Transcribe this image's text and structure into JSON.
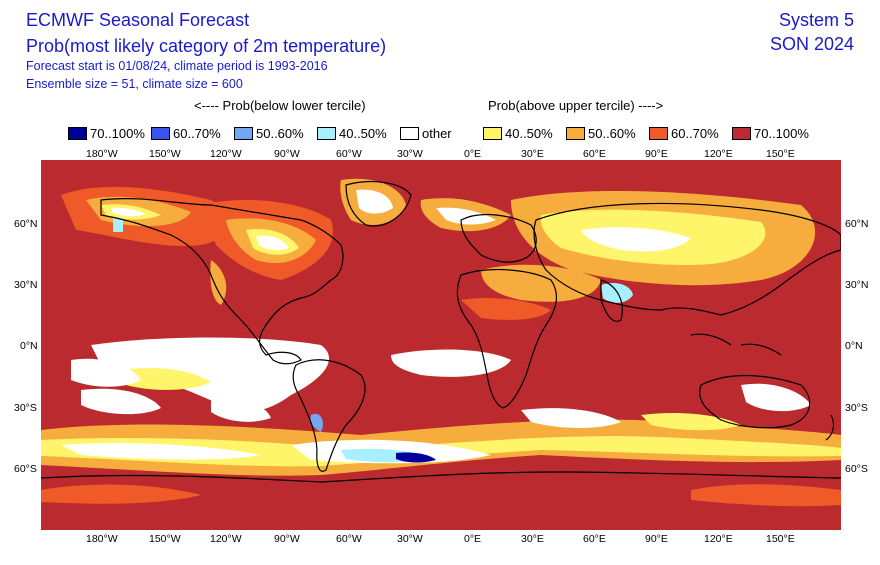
{
  "header": {
    "title": "ECMWF Seasonal Forecast",
    "subtitle": "Prob(most likely category of 2m temperature)",
    "forecast_info": "Forecast start is 01/08/24, climate period is 1993-2016",
    "ensemble_info": "Ensemble size = 51, climate size = 600",
    "system": "System 5",
    "season": "SON 2024"
  },
  "legend": {
    "below_label": "<---- Prob(below lower tercile)",
    "above_label": "Prob(above upper tercile) ---->",
    "items": [
      {
        "label": "70..100%",
        "color": "#00009c"
      },
      {
        "label": "60..70%",
        "color": "#3a55ee"
      },
      {
        "label": "50..60%",
        "color": "#74a6f2"
      },
      {
        "label": "40..50%",
        "color": "#a6f0ff"
      },
      {
        "label": "other",
        "color": "#ffffff"
      },
      {
        "label": "40..50%",
        "color": "#fff56b"
      },
      {
        "label": "50..60%",
        "color": "#f7ad3e"
      },
      {
        "label": "60..70%",
        "color": "#ef5a28"
      },
      {
        "label": "70..100%",
        "color": "#bb2a2e"
      }
    ]
  },
  "map": {
    "lon_labels": [
      "180°W",
      "150°W",
      "120°W",
      "90°W",
      "60°W",
      "30°W",
      "0°E",
      "30°E",
      "60°E",
      "90°E",
      "120°E",
      "150°E"
    ],
    "lat_labels": [
      "60°N",
      "30°N",
      "0°N",
      "30°S",
      "60°S"
    ]
  }
}
